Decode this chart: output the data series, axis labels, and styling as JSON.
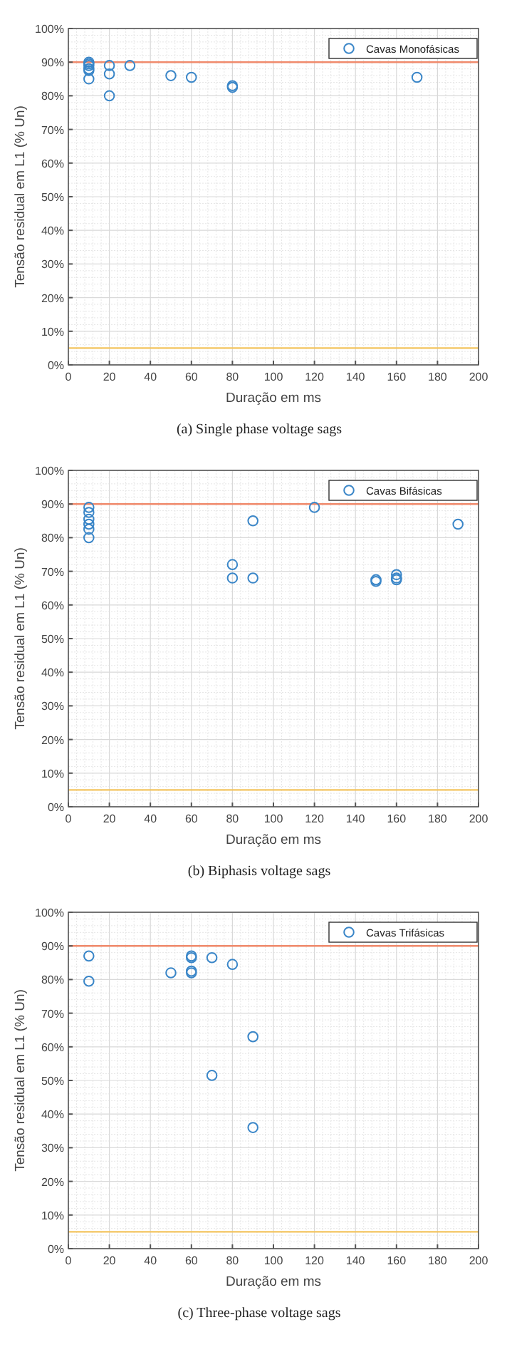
{
  "chart_data": [
    {
      "type": "scatter",
      "title": "(a)  Single phase voltage sags",
      "xlabel": "Duração em ms",
      "ylabel": "Tensão residual em L1 (% Un)",
      "xlim": [
        0,
        200
      ],
      "xticks": [
        0,
        20,
        40,
        60,
        80,
        100,
        120,
        140,
        160,
        180,
        200
      ],
      "ylim": [
        0,
        100
      ],
      "yticks": [
        {
          "value": 0,
          "label": "0%"
        },
        {
          "value": 10,
          "label": "10%"
        },
        {
          "value": 20,
          "label": "20%"
        },
        {
          "value": 30,
          "label": "30%"
        },
        {
          "value": 40,
          "label": "40%"
        },
        {
          "value": 50,
          "label": "50%"
        },
        {
          "value": 60,
          "label": "60%"
        },
        {
          "value": 70,
          "label": "70%"
        },
        {
          "value": 80,
          "label": "80%"
        },
        {
          "value": 90,
          "label": "90%"
        },
        {
          "value": 100,
          "label": "100%"
        }
      ],
      "grid": true,
      "legend": "top right",
      "marker": "circle",
      "ref_lines": [
        {
          "axis": "y",
          "value": 90,
          "color": "#f08a6c"
        },
        {
          "axis": "y",
          "value": 5,
          "color": "#f3c45e"
        }
      ],
      "series": [
        {
          "name": "Cavas Monofásicas",
          "color": "#3a86c8",
          "x": [
            10,
            10,
            10,
            10,
            10,
            10,
            20,
            20,
            20,
            30,
            50,
            60,
            80,
            80,
            170
          ],
          "values": [
            90,
            89.5,
            89,
            88,
            87.5,
            85,
            89,
            86.5,
            80,
            89,
            86,
            85.5,
            83,
            82.5,
            85.5
          ]
        }
      ]
    },
    {
      "type": "scatter",
      "title": "(b)  Biphasis voltage sags",
      "xlabel": "Duração em ms",
      "ylabel": "Tensão residual em L1 (% Un)",
      "xlim": [
        0,
        200
      ],
      "xticks": [
        0,
        20,
        40,
        60,
        80,
        100,
        120,
        140,
        160,
        180,
        200
      ],
      "ylim": [
        0,
        100
      ],
      "yticks": [
        {
          "value": 0,
          "label": "0%"
        },
        {
          "value": 10,
          "label": "10%"
        },
        {
          "value": 20,
          "label": "20%"
        },
        {
          "value": 30,
          "label": "30%"
        },
        {
          "value": 40,
          "label": "40%"
        },
        {
          "value": 50,
          "label": "50%"
        },
        {
          "value": 60,
          "label": "60%"
        },
        {
          "value": 70,
          "label": "70%"
        },
        {
          "value": 80,
          "label": "80%"
        },
        {
          "value": 90,
          "label": "90%"
        },
        {
          "value": 100,
          "label": "100%"
        }
      ],
      "grid": true,
      "legend": "top right",
      "marker": "circle",
      "ref_lines": [
        {
          "axis": "y",
          "value": 90,
          "color": "#f08a6c"
        },
        {
          "axis": "y",
          "value": 5,
          "color": "#f3c45e"
        }
      ],
      "series": [
        {
          "name": "Cavas Bifásicas",
          "color": "#3a86c8",
          "x": [
            10,
            10,
            10,
            10,
            10,
            10,
            80,
            80,
            90,
            90,
            120,
            150,
            150,
            160,
            160,
            160,
            190
          ],
          "values": [
            89,
            87.5,
            85.5,
            84,
            82.5,
            80,
            72,
            68,
            85,
            68,
            89,
            67.5,
            67,
            69,
            68,
            67.5,
            84
          ]
        }
      ]
    },
    {
      "type": "scatter",
      "title": "(c)  Three-phase voltage sags",
      "xlabel": "Duração em ms",
      "ylabel": "Tensão residual em L1 (% Un)",
      "xlim": [
        0,
        200
      ],
      "xticks": [
        0,
        20,
        40,
        60,
        80,
        100,
        120,
        140,
        160,
        180,
        200
      ],
      "ylim": [
        0,
        100
      ],
      "yticks": [
        {
          "value": 0,
          "label": "0%"
        },
        {
          "value": 10,
          "label": "10%"
        },
        {
          "value": 20,
          "label": "20%"
        },
        {
          "value": 30,
          "label": "30%"
        },
        {
          "value": 40,
          "label": "40%"
        },
        {
          "value": 50,
          "label": "50%"
        },
        {
          "value": 60,
          "label": "60%"
        },
        {
          "value": 70,
          "label": "70%"
        },
        {
          "value": 80,
          "label": "80%"
        },
        {
          "value": 90,
          "label": "90%"
        },
        {
          "value": 100,
          "label": "100%"
        }
      ],
      "grid": true,
      "legend": "top right",
      "marker": "circle",
      "ref_lines": [
        {
          "axis": "y",
          "value": 90,
          "color": "#f08a6c"
        },
        {
          "axis": "y",
          "value": 5,
          "color": "#f3c45e"
        }
      ],
      "series": [
        {
          "name": "Cavas Trifásicas",
          "color": "#3a86c8",
          "x": [
            10,
            10,
            50,
            60,
            60,
            60,
            60,
            70,
            70,
            80,
            90,
            90
          ],
          "values": [
            87,
            79.5,
            82,
            87,
            86.5,
            82.5,
            82,
            86.5,
            51.5,
            84.5,
            63,
            36
          ]
        }
      ]
    }
  ]
}
